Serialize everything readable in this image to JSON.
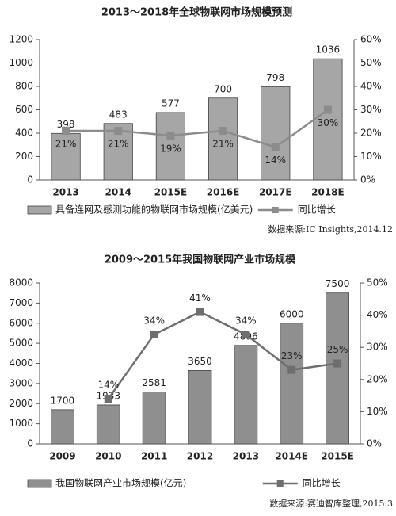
{
  "chart_data": [
    {
      "type": "bar",
      "title": "2013～2018年全球物联网市场规模预测",
      "categories": [
        "2013",
        "2014",
        "2015E",
        "2016E",
        "2017E",
        "2018E"
      ],
      "series": [
        {
          "name": "具备连网及感测功能的物联网市场规模(亿美元)",
          "color": "#a6a6a6",
          "values": [
            398,
            483,
            577,
            700,
            798,
            1036
          ]
        },
        {
          "name": "同比增长",
          "color": "#8c8c8c",
          "axis": "y2",
          "values": [
            21,
            21,
            19,
            21,
            14,
            30
          ],
          "value_labels": [
            "21%",
            "21%",
            "19%",
            "21%",
            "14%",
            "30%"
          ]
        }
      ],
      "ylim": [
        0,
        1200
      ],
      "yticks": [
        0,
        200,
        400,
        600,
        800,
        1000,
        1200
      ],
      "y2lim": [
        0,
        60
      ],
      "y2ticks": [
        {
          "value": 0,
          "label": "0%"
        },
        {
          "value": 10,
          "label": "10%"
        },
        {
          "value": 20,
          "label": "20%"
        },
        {
          "value": 30,
          "label": "30%"
        },
        {
          "value": 40,
          "label": "40%"
        },
        {
          "value": 50,
          "label": "50%"
        },
        {
          "value": 60,
          "label": "60%"
        }
      ],
      "source": "数据来源:IC Insights,2014.12"
    },
    {
      "type": "bar",
      "title": "2009～2015年我国物联网产业市场规模",
      "categories": [
        "2009",
        "2010",
        "2011",
        "2012",
        "2013",
        "2014E",
        "2015E"
      ],
      "series": [
        {
          "name": "我国物联网产业市场规模(亿元)",
          "color": "#8f8f8f",
          "values": [
            1700,
            1933,
            2581,
            3650,
            4896,
            6000,
            7500
          ]
        },
        {
          "name": "同比增长",
          "color": "#6e6e6e",
          "axis": "y2",
          "values": [
            null,
            14,
            34,
            41,
            34,
            23,
            25
          ],
          "value_labels": [
            null,
            "14%",
            "34%",
            "41%",
            "34%",
            "23%",
            "25%"
          ]
        }
      ],
      "ylim": [
        0,
        8000
      ],
      "yticks": [
        0,
        1000,
        2000,
        3000,
        4000,
        5000,
        6000,
        7000,
        8000
      ],
      "y2lim": [
        0,
        50
      ],
      "y2ticks": [
        {
          "value": 0,
          "label": "0%"
        },
        {
          "value": 10,
          "label": "10%"
        },
        {
          "value": 20,
          "label": "20%"
        },
        {
          "value": 30,
          "label": "30%"
        },
        {
          "value": 40,
          "label": "40%"
        },
        {
          "value": 50,
          "label": "50%"
        }
      ],
      "source": "数据来源:赛迪智库整理,2015.3"
    }
  ]
}
